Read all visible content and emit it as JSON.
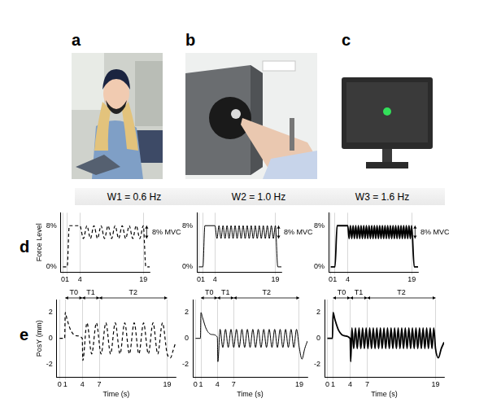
{
  "panel_labels": [
    "a",
    "b",
    "c",
    "d",
    "e"
  ],
  "column_titles": [
    "W1 = 0.6 Hz",
    "W2 = 1.0 Hz",
    "W3 = 1.6 Hz"
  ],
  "chart_data": [
    {
      "type": "line",
      "color": "#000000",
      "line_style": "dashed",
      "grid": true,
      "y_label": "Force Level",
      "xlim": [
        -0.5,
        20.5
      ],
      "xticks": [
        0,
        1,
        4,
        19
      ],
      "ylim": [
        -1,
        10.5
      ],
      "yticks": [
        {
          "value": 0,
          "label": "0%"
        },
        {
          "value": 8,
          "label": "8%"
        }
      ],
      "x": [
        0,
        1,
        1.5,
        4,
        4.83,
        5.67,
        6.5,
        7.33,
        8.17,
        9,
        9.83,
        10.67,
        11.5,
        12.33,
        13.17,
        14,
        14.83,
        15.67,
        16.5,
        17.33,
        18.17,
        19,
        19.6,
        20.5
      ],
      "values": [
        0,
        0,
        8,
        8,
        5.5,
        8,
        5.5,
        8,
        5.5,
        8,
        5.5,
        8,
        5.5,
        8,
        5.5,
        8,
        5.5,
        8,
        5.5,
        8,
        5.5,
        8,
        0,
        0
      ],
      "annotations": [
        {
          "text": "8% MVC",
          "x": 19.8,
          "y_from": 5.5,
          "y_to": 8
        }
      ]
    },
    {
      "type": "line",
      "color": "#000000",
      "line_style": "solid",
      "grid": true,
      "xlim": [
        -0.5,
        20.5
      ],
      "xticks": [
        0,
        1,
        4,
        19
      ],
      "ylim": [
        -1,
        10.5
      ],
      "yticks": [
        {
          "value": 0,
          "label": "0%"
        },
        {
          "value": 8,
          "label": "8%"
        }
      ],
      "x": [
        0,
        1,
        1.5,
        4,
        4.5,
        5,
        5.5,
        6,
        6.5,
        7,
        7.5,
        8,
        8.5,
        9,
        9.5,
        10,
        10.5,
        11,
        11.5,
        12,
        12.5,
        13,
        13.5,
        14,
        14.5,
        15,
        15.5,
        16,
        16.5,
        17,
        17.5,
        18,
        18.5,
        19,
        19.6,
        20.5
      ],
      "values": [
        0,
        0,
        8,
        8,
        5.5,
        8,
        5.5,
        8,
        5.5,
        8,
        5.5,
        8,
        5.5,
        8,
        5.5,
        8,
        5.5,
        8,
        5.5,
        8,
        5.5,
        8,
        5.5,
        8,
        5.5,
        8,
        5.5,
        8,
        5.5,
        8,
        5.5,
        8,
        5.5,
        8,
        0,
        0
      ],
      "annotations": [
        {
          "text": "8% MVC",
          "x": 19.8,
          "y_from": 5.5,
          "y_to": 8
        }
      ]
    },
    {
      "type": "line",
      "color": "#000000",
      "line_style": "thick",
      "grid": true,
      "xlim": [
        -0.5,
        20.5
      ],
      "xticks": [
        0,
        1,
        4,
        19
      ],
      "ylim": [
        -1,
        10.5
      ],
      "yticks": [
        {
          "value": 0,
          "label": "0%"
        },
        {
          "value": 8,
          "label": "8%"
        }
      ],
      "x": [
        0,
        1,
        1.5,
        4,
        4.3125,
        4.625,
        4.9375,
        5.25,
        5.5625,
        5.875,
        6.1875,
        6.5,
        6.8125,
        7.125,
        7.4375,
        7.75,
        8.0625,
        8.375,
        8.6875,
        9,
        9.3125,
        9.625,
        9.9375,
        10.25,
        10.5625,
        10.875,
        11.1875,
        11.5,
        11.8125,
        12.125,
        12.4375,
        12.75,
        13.0625,
        13.375,
        13.6875,
        14,
        14.3125,
        14.625,
        14.9375,
        15.25,
        15.5625,
        15.875,
        16.1875,
        16.5,
        16.8125,
        17.125,
        17.4375,
        17.75,
        18.0625,
        18.375,
        18.6875,
        19,
        19.6,
        20.5
      ],
      "values": [
        0,
        0,
        8,
        8,
        5.5,
        8,
        5.5,
        8,
        5.5,
        8,
        5.5,
        8,
        5.5,
        8,
        5.5,
        8,
        5.5,
        8,
        5.5,
        8,
        5.5,
        8,
        5.5,
        8,
        5.5,
        8,
        5.5,
        8,
        5.5,
        8,
        5.5,
        8,
        5.5,
        8,
        5.5,
        8,
        5.5,
        8,
        5.5,
        8,
        5.5,
        8,
        5.5,
        8,
        5.5,
        8,
        5.5,
        8,
        5.5,
        8,
        5.5,
        8,
        0,
        0
      ],
      "annotations": [
        {
          "text": "8% MVC",
          "x": 19.8,
          "y_from": 5.5,
          "y_to": 8
        }
      ]
    },
    {
      "type": "line",
      "color": "#000000",
      "line_style": "dashed",
      "grid": true,
      "x_label": "Time (s)",
      "y_label": "PosY (mm)",
      "xlim": [
        -0.5,
        20.5
      ],
      "xticks": [
        0,
        1,
        4,
        7,
        19
      ],
      "ylim": [
        -3,
        3
      ],
      "yticks": [
        -2,
        0,
        2
      ],
      "x": [
        0,
        0.9,
        1,
        1.3,
        2,
        3,
        4,
        4.1,
        4.83,
        5.67,
        6.5,
        7.33,
        8.17,
        9,
        9.83,
        10.67,
        11.5,
        12.33,
        13.17,
        14,
        14.83,
        15.67,
        16.5,
        17.33,
        18.17,
        19,
        19.6,
        20,
        20.5
      ],
      "values": [
        0,
        0,
        2,
        1.5,
        0.6,
        0.2,
        0,
        -1.7,
        1.2,
        -1.2,
        1.2,
        -1.2,
        1.2,
        -1.2,
        1.2,
        -1.2,
        1.2,
        -1.2,
        1.2,
        -1.2,
        1.2,
        -1.2,
        1.2,
        -1.2,
        1.2,
        -1.2,
        -1.5,
        -1,
        -0.3
      ],
      "annotations": [
        {
          "text": "T0",
          "x_from": 1,
          "x_to": 4
        },
        {
          "text": "T1",
          "x_from": 4,
          "x_to": 7
        },
        {
          "text": "T2",
          "x_from": 7,
          "x_to": 19
        }
      ]
    },
    {
      "type": "line",
      "color": "#000000",
      "line_style": "solid",
      "grid": true,
      "x_label": "Time (s)",
      "xlim": [
        -0.5,
        20.5
      ],
      "xticks": [
        0,
        1,
        4,
        7,
        19
      ],
      "ylim": [
        -3,
        3
      ],
      "yticks": [
        -2,
        0,
        2
      ],
      "x": [
        0,
        0.9,
        1,
        1.3,
        2,
        3,
        4,
        4.1,
        4.5,
        5,
        5.5,
        6,
        6.5,
        7,
        7.5,
        8,
        8.5,
        9,
        9.5,
        10,
        10.5,
        11,
        11.5,
        12,
        12.5,
        13,
        13.5,
        14,
        14.5,
        15,
        15.5,
        16,
        16.5,
        17,
        17.5,
        18,
        18.5,
        19,
        19.5,
        20,
        20.5
      ],
      "values": [
        0,
        0,
        2,
        1.6,
        0.7,
        0.3,
        0.1,
        -1.8,
        0.7,
        -0.7,
        0.7,
        -0.7,
        0.7,
        -0.7,
        0.7,
        -0.7,
        0.7,
        -0.7,
        0.7,
        -0.7,
        0.7,
        -0.7,
        0.7,
        -0.7,
        0.7,
        -0.7,
        0.7,
        -0.7,
        0.7,
        -0.7,
        0.7,
        -0.7,
        0.7,
        -0.7,
        0.7,
        -0.7,
        0.7,
        -0.7,
        -1.6,
        -0.8,
        -0.2
      ],
      "annotations": [
        {
          "text": "T0",
          "x_from": 1,
          "x_to": 4
        },
        {
          "text": "T1",
          "x_from": 4,
          "x_to": 7
        },
        {
          "text": "T2",
          "x_from": 7,
          "x_to": 19
        }
      ]
    },
    {
      "type": "line",
      "color": "#000000",
      "line_style": "thick",
      "grid": true,
      "x_label": "Time (s)",
      "xlim": [
        -0.5,
        20.5
      ],
      "xticks": [
        0,
        1,
        4,
        7,
        19
      ],
      "ylim": [
        -3,
        3
      ],
      "yticks": [
        -2,
        0,
        2
      ],
      "x": [
        0,
        0.9,
        1,
        1.3,
        2,
        3,
        4,
        4.1,
        4.3125,
        4.625,
        4.9375,
        5.25,
        5.5625,
        5.875,
        6.1875,
        6.5,
        6.8125,
        7.125,
        7.4375,
        7.75,
        8.0625,
        8.375,
        8.6875,
        9,
        9.3125,
        9.625,
        9.9375,
        10.25,
        10.5625,
        10.875,
        11.1875,
        11.5,
        11.8125,
        12.125,
        12.4375,
        12.75,
        13.0625,
        13.375,
        13.6875,
        14,
        14.3125,
        14.625,
        14.9375,
        15.25,
        15.5625,
        15.875,
        16.1875,
        16.5,
        16.8125,
        17.125,
        17.4375,
        17.75,
        18.0625,
        18.375,
        18.6875,
        19,
        19.5,
        20,
        20.5
      ],
      "values": [
        0,
        0,
        2,
        1.5,
        0.6,
        0.2,
        0,
        -1.8,
        0.8,
        -0.8,
        0.8,
        -0.8,
        0.8,
        -0.8,
        0.8,
        -0.8,
        0.8,
        -0.8,
        0.8,
        -0.8,
        0.8,
        -0.8,
        0.8,
        -0.8,
        0.8,
        -0.8,
        0.8,
        -0.8,
        0.8,
        -0.8,
        0.8,
        -0.8,
        0.8,
        -0.8,
        0.8,
        -0.8,
        0.8,
        -0.8,
        0.8,
        -0.8,
        0.8,
        -0.8,
        0.8,
        -0.8,
        0.8,
        -0.8,
        0.8,
        -0.8,
        0.8,
        -0.8,
        0.8,
        -0.8,
        0.8,
        -0.8,
        0.8,
        -0.8,
        -1.5,
        -0.8,
        -0.3
      ],
      "annotations": [
        {
          "text": "T0",
          "x_from": 1,
          "x_to": 4
        },
        {
          "text": "T1",
          "x_from": 4,
          "x_to": 7
        },
        {
          "text": "T2",
          "x_from": 7,
          "x_to": 19
        }
      ]
    }
  ]
}
